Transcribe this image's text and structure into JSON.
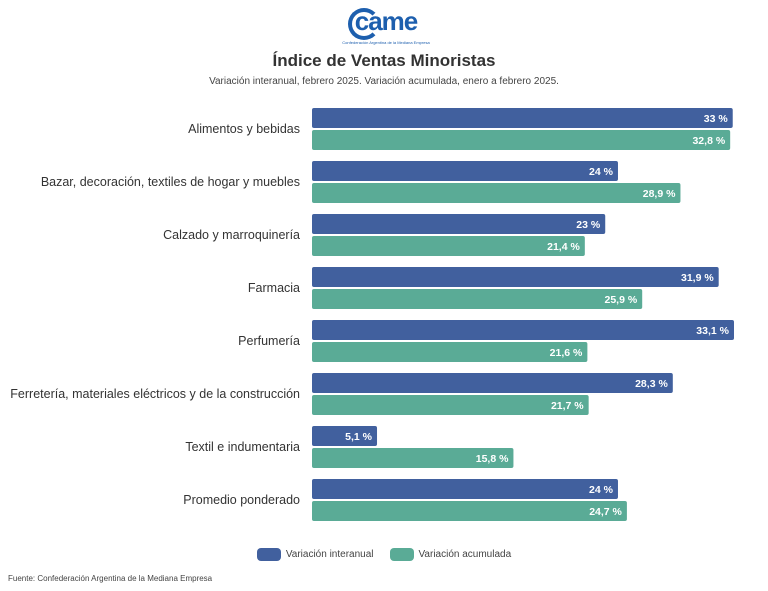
{
  "logo": {
    "text": "came",
    "tagline": "Confederación Argentina de la Mediana Empresa"
  },
  "header": {
    "title": "Índice de Ventas Minoristas",
    "subtitle": "Variación interanual, febrero 2025. Variación acumulada, enero a febrero 2025."
  },
  "chart_data": {
    "type": "bar",
    "orientation": "horizontal",
    "title": "Índice de Ventas Minoristas",
    "subtitle": "Variación interanual, febrero 2025. Variación acumulada, enero a febrero 2025.",
    "categories": [
      "Alimentos y bebidas",
      "Bazar, decoración, textiles de hogar y muebles",
      "Calzado y marroquinería",
      "Farmacia",
      "Perfumería",
      "Ferretería, materiales eléctricos y de la construcción",
      "Textil e indumentaria",
      "Promedio ponderado"
    ],
    "series": [
      {
        "name": "Variación interanual",
        "color": "#41609e",
        "values": [
          33,
          24,
          23,
          31.9,
          33.1,
          28.3,
          5.1,
          24
        ],
        "labels": [
          "33 %",
          "24 %",
          "23 %",
          "31,9 %",
          "33,1 %",
          "28,3 %",
          "5,1 %",
          "24 %"
        ]
      },
      {
        "name": "Variación acumulada",
        "color": "#5aab96",
        "values": [
          32.8,
          28.9,
          21.4,
          25.9,
          21.6,
          21.7,
          15.8,
          24.7
        ],
        "labels": [
          "32,8 %",
          "28,9 %",
          "21,4 %",
          "25,9 %",
          "21,6 %",
          "21,7 %",
          "15,8 %",
          "24,7 %"
        ]
      }
    ],
    "xlim": [
      0,
      33.1
    ],
    "grid": false,
    "legend": "bottom-center"
  },
  "legend": {
    "items": [
      {
        "label": "Variación interanual",
        "color": "#41609e"
      },
      {
        "label": "Variación acumulada",
        "color": "#5aab96"
      }
    ]
  },
  "footer": {
    "source": "Fuente: Confederación Argentina de la Mediana Empresa"
  }
}
